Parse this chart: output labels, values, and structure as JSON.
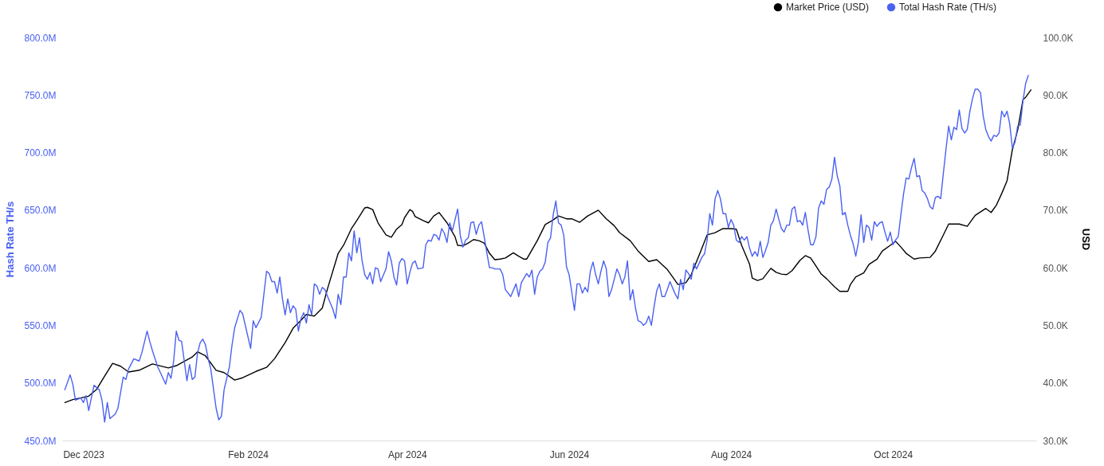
{
  "chart_data": {
    "type": "line",
    "ylabel": "Hash Rate TH/s",
    "y2label": "USD",
    "xlim": [
      "2023-11-23",
      "2024-11-24"
    ],
    "xticks": [
      {
        "value": "2023-12-01",
        "label": "Dec 2023"
      },
      {
        "value": "2024-02-01",
        "label": "Feb 2024"
      },
      {
        "value": "2024-04-01",
        "label": "Apr 2024"
      },
      {
        "value": "2024-06-01",
        "label": "Jun 2024"
      },
      {
        "value": "2024-08-01",
        "label": "Aug 2024"
      },
      {
        "value": "2024-10-01",
        "label": "Oct 2024"
      }
    ],
    "ylim": [
      450,
      800
    ],
    "yticks": [
      {
        "value": 450,
        "label": "450.0M"
      },
      {
        "value": 500,
        "label": "500.0M"
      },
      {
        "value": 550,
        "label": "550.0M"
      },
      {
        "value": 600,
        "label": "600.0M"
      },
      {
        "value": 650,
        "label": "650.0M"
      },
      {
        "value": 700,
        "label": "700.0M"
      },
      {
        "value": 750,
        "label": "750.0M"
      },
      {
        "value": 800,
        "label": "800.0M"
      }
    ],
    "y2lim": [
      30,
      100
    ],
    "y2ticks": [
      {
        "value": 30,
        "label": "30.0K"
      },
      {
        "value": 40,
        "label": "40.0K"
      },
      {
        "value": 50,
        "label": "50.0K"
      },
      {
        "value": 60,
        "label": "60.0K"
      },
      {
        "value": 70,
        "label": "70.0K"
      },
      {
        "value": 80,
        "label": "80.0K"
      },
      {
        "value": 90,
        "label": "90.0K"
      },
      {
        "value": 100,
        "label": "100.0K"
      }
    ],
    "legend": "top right",
    "series": [
      {
        "name": "Market Price (USD)",
        "color": "#000000",
        "axis": "y2",
        "x": [
          "2023-11-24",
          "2023-11-27",
          "2023-12-03",
          "2023-12-06",
          "2023-12-09",
          "2023-12-12",
          "2023-12-15",
          "2023-12-18",
          "2023-12-22",
          "2023-12-27",
          "2024-01-02",
          "2024-01-05",
          "2024-01-11",
          "2024-01-13",
          "2024-01-16",
          "2024-01-20",
          "2024-01-23",
          "2024-01-27",
          "2024-01-30",
          "2024-02-04",
          "2024-02-08",
          "2024-02-11",
          "2024-02-15",
          "2024-02-18",
          "2024-02-21",
          "2024-02-23",
          "2024-02-26",
          "2024-02-29",
          "2024-03-02",
          "2024-03-06",
          "2024-03-08",
          "2024-03-11",
          "2024-03-13",
          "2024-03-16",
          "2024-03-17",
          "2024-03-19",
          "2024-03-21",
          "2024-03-24",
          "2024-03-26",
          "2024-03-28",
          "2024-03-30",
          "2024-03-31",
          "2024-04-02",
          "2024-04-03",
          "2024-04-04",
          "2024-04-07",
          "2024-04-09",
          "2024-04-11",
          "2024-04-13",
          "2024-04-14",
          "2024-04-16",
          "2024-04-19",
          "2024-04-20",
          "2024-04-22",
          "2024-04-24",
          "2024-04-26",
          "2024-04-28",
          "2024-04-30",
          "2024-05-02",
          "2024-05-04",
          "2024-05-06",
          "2024-05-08",
          "2024-05-11",
          "2024-05-13",
          "2024-05-15",
          "2024-05-16",
          "2024-05-20",
          "2024-05-23",
          "2024-05-26",
          "2024-05-28",
          "2024-05-31",
          "2024-06-02",
          "2024-06-05",
          "2024-06-08",
          "2024-06-12",
          "2024-06-15",
          "2024-06-18",
          "2024-06-20",
          "2024-06-24",
          "2024-06-27",
          "2024-07-01",
          "2024-07-04",
          "2024-07-08",
          "2024-07-10",
          "2024-07-12",
          "2024-07-15",
          "2024-07-17",
          "2024-07-20",
          "2024-07-23",
          "2024-07-26",
          "2024-07-29",
          "2024-08-01",
          "2024-08-03",
          "2024-08-05",
          "2024-08-08",
          "2024-08-09",
          "2024-08-11",
          "2024-08-13",
          "2024-08-16",
          "2024-08-18",
          "2024-08-20",
          "2024-08-22",
          "2024-08-24",
          "2024-08-27",
          "2024-08-29",
          "2024-08-31",
          "2024-09-02",
          "2024-09-04",
          "2024-09-06",
          "2024-09-09",
          "2024-09-11",
          "2024-09-14",
          "2024-09-15",
          "2024-09-17",
          "2024-09-20",
          "2024-09-22",
          "2024-09-25",
          "2024-09-27",
          "2024-09-30",
          "2024-10-02",
          "2024-10-04",
          "2024-10-06",
          "2024-10-09",
          "2024-10-11",
          "2024-10-15",
          "2024-10-17",
          "2024-10-20",
          "2024-10-22",
          "2024-10-26",
          "2024-10-29",
          "2024-11-01",
          "2024-11-05",
          "2024-11-07",
          "2024-11-09",
          "2024-11-11",
          "2024-11-13",
          "2024-11-15",
          "2024-11-17",
          "2024-11-19",
          "2024-11-20",
          "2024-11-22"
        ],
        "values": [
          36.6,
          37.1,
          37.7,
          38.9,
          41.2,
          43.4,
          42.9,
          41.9,
          42.2,
          43.3,
          42.6,
          43.0,
          44.5,
          45.4,
          44.7,
          42.2,
          41.8,
          40.5,
          40.9,
          42.0,
          42.7,
          44.2,
          47.0,
          49.5,
          50.9,
          51.9,
          51.6,
          53.0,
          56.4,
          62.5,
          63.9,
          66.8,
          68.2,
          70.4,
          70.5,
          70.1,
          67.8,
          65.7,
          65.3,
          66.7,
          67.5,
          68.7,
          70.1,
          69.8,
          68.9,
          68.2,
          67.8,
          69.0,
          69.6,
          69.0,
          67.8,
          65.4,
          63.9,
          63.8,
          64.3,
          64.9,
          64.7,
          64.3,
          62.5,
          61.4,
          61.5,
          61.7,
          62.6,
          62.0,
          61.5,
          61.5,
          64.7,
          67.5,
          68.3,
          69.0,
          68.5,
          68.5,
          67.9,
          69.0,
          70.0,
          68.5,
          67.3,
          66.1,
          64.7,
          62.9,
          61.1,
          61.4,
          59.7,
          58.4,
          57.1,
          57.4,
          58.8,
          62.2,
          65.7,
          66.1,
          66.8,
          66.8,
          66.7,
          63.9,
          60.6,
          58.2,
          57.8,
          58.1,
          59.9,
          59.2,
          58.9,
          58.8,
          59.5,
          61.3,
          62.1,
          61.7,
          60.3,
          58.9,
          58.1,
          56.7,
          55.9,
          55.9,
          57.1,
          58.4,
          59.1,
          60.6,
          61.5,
          62.9,
          63.9,
          64.6,
          63.6,
          62.5,
          61.5,
          61.7,
          61.8,
          62.9,
          65.7,
          67.6,
          67.6,
          67.2,
          69.1,
          70.3,
          69.6,
          70.9,
          72.9,
          75.1,
          80.5,
          83.9,
          89.2,
          89.6,
          90.9
        ]
      },
      {
        "name": "Total Hash Rate (TH/s)",
        "color": "#4a61f2",
        "axis": "y",
        "x": [
          "2023-11-24",
          "2023-11-26",
          "2023-11-27",
          "2023-11-28",
          "2023-11-30",
          "2023-12-01",
          "2023-12-02",
          "2023-12-03",
          "2023-12-05",
          "2023-12-07",
          "2023-12-08",
          "2023-12-09",
          "2023-12-10",
          "2023-12-11",
          "2023-12-13",
          "2023-12-14",
          "2023-12-16",
          "2023-12-17",
          "2023-12-18",
          "2023-12-20",
          "2023-12-22",
          "2023-12-23",
          "2023-12-25",
          "2023-12-26",
          "2023-12-27",
          "2023-12-29",
          "2023-12-31",
          "2024-01-01",
          "2024-01-02",
          "2024-01-03",
          "2024-01-04",
          "2024-01-05",
          "2024-01-06",
          "2024-01-07",
          "2024-01-08",
          "2024-01-09",
          "2024-01-10",
          "2024-01-11",
          "2024-01-12",
          "2024-01-13",
          "2024-01-14",
          "2024-01-15",
          "2024-01-16",
          "2024-01-17",
          "2024-01-18",
          "2024-01-20",
          "2024-01-21",
          "2024-01-22",
          "2024-01-23",
          "2024-01-25",
          "2024-01-26",
          "2024-01-27",
          "2024-01-29",
          "2024-01-30",
          "2024-02-02",
          "2024-02-03",
          "2024-02-04",
          "2024-02-06",
          "2024-02-08",
          "2024-02-09",
          "2024-02-10",
          "2024-02-11",
          "2024-02-12",
          "2024-02-13",
          "2024-02-14",
          "2024-02-15",
          "2024-02-16",
          "2024-02-17",
          "2024-02-18",
          "2024-02-19",
          "2024-02-20",
          "2024-02-21",
          "2024-02-22",
          "2024-02-23",
          "2024-02-24",
          "2024-02-25",
          "2024-02-26",
          "2024-02-27",
          "2024-02-28",
          "2024-02-29",
          "2024-03-01",
          "2024-03-02",
          "2024-03-04",
          "2024-03-05",
          "2024-03-06",
          "2024-03-07",
          "2024-03-08",
          "2024-03-09",
          "2024-03-10",
          "2024-03-11",
          "2024-03-12",
          "2024-03-13",
          "2024-03-14",
          "2024-03-15",
          "2024-03-16",
          "2024-03-17",
          "2024-03-18",
          "2024-03-19",
          "2024-03-20",
          "2024-03-21",
          "2024-03-22",
          "2024-03-24",
          "2024-03-25",
          "2024-03-26",
          "2024-03-27",
          "2024-03-28",
          "2024-03-29",
          "2024-03-30",
          "2024-03-31",
          "2024-04-01",
          "2024-04-02",
          "2024-04-03",
          "2024-04-04",
          "2024-04-05",
          "2024-04-07",
          "2024-04-08",
          "2024-04-09",
          "2024-04-10",
          "2024-04-11",
          "2024-04-12",
          "2024-04-13",
          "2024-04-14",
          "2024-04-15",
          "2024-04-16",
          "2024-04-17",
          "2024-04-18",
          "2024-04-20",
          "2024-04-21",
          "2024-04-22",
          "2024-04-23",
          "2024-04-24",
          "2024-04-25",
          "2024-04-26",
          "2024-04-27",
          "2024-04-28",
          "2024-04-29",
          "2024-04-30",
          "2024-05-01",
          "2024-05-02",
          "2024-05-03",
          "2024-05-04",
          "2024-05-06",
          "2024-05-07",
          "2024-05-08",
          "2024-05-10",
          "2024-05-12",
          "2024-05-13",
          "2024-05-14",
          "2024-05-16",
          "2024-05-17",
          "2024-05-18",
          "2024-05-19",
          "2024-05-20",
          "2024-05-21",
          "2024-05-22",
          "2024-05-23",
          "2024-05-24",
          "2024-05-25",
          "2024-05-26",
          "2024-05-27",
          "2024-05-28",
          "2024-05-29",
          "2024-05-30",
          "2024-05-31",
          "2024-06-01",
          "2024-06-02",
          "2024-06-03",
          "2024-06-04",
          "2024-06-05",
          "2024-06-06",
          "2024-06-07",
          "2024-06-08",
          "2024-06-09",
          "2024-06-10",
          "2024-06-11",
          "2024-06-12",
          "2024-06-13",
          "2024-06-14",
          "2024-06-15",
          "2024-06-16",
          "2024-06-17",
          "2024-06-19",
          "2024-06-20",
          "2024-06-21",
          "2024-06-22",
          "2024-06-23",
          "2024-06-24",
          "2024-06-25",
          "2024-06-26",
          "2024-06-27",
          "2024-06-28",
          "2024-06-29",
          "2024-06-30",
          "2024-07-01",
          "2024-07-02",
          "2024-07-03",
          "2024-07-04",
          "2024-07-05",
          "2024-07-06",
          "2024-07-07",
          "2024-07-08",
          "2024-07-09",
          "2024-07-11",
          "2024-07-12",
          "2024-07-13",
          "2024-07-14",
          "2024-07-15",
          "2024-07-16",
          "2024-07-17",
          "2024-07-18",
          "2024-07-19",
          "2024-07-21",
          "2024-07-22",
          "2024-07-23",
          "2024-07-24",
          "2024-07-25",
          "2024-07-26",
          "2024-07-27",
          "2024-07-28",
          "2024-07-29",
          "2024-07-30",
          "2024-07-31",
          "2024-08-01",
          "2024-08-02",
          "2024-08-03",
          "2024-08-04",
          "2024-08-05",
          "2024-08-06",
          "2024-08-07",
          "2024-08-08",
          "2024-08-09",
          "2024-08-10",
          "2024-08-11",
          "2024-08-12",
          "2024-08-13",
          "2024-08-14",
          "2024-08-15",
          "2024-08-16",
          "2024-08-17",
          "2024-08-18",
          "2024-08-19",
          "2024-08-20",
          "2024-08-21",
          "2024-08-22",
          "2024-08-23",
          "2024-08-24",
          "2024-08-25",
          "2024-08-26",
          "2024-08-27",
          "2024-08-28",
          "2024-08-29",
          "2024-08-30",
          "2024-08-31",
          "2024-09-01",
          "2024-09-02",
          "2024-09-03",
          "2024-09-04",
          "2024-09-05",
          "2024-09-06",
          "2024-09-07",
          "2024-09-08",
          "2024-09-09",
          "2024-09-10",
          "2024-09-11",
          "2024-09-12",
          "2024-09-13",
          "2024-09-14",
          "2024-09-15",
          "2024-09-16",
          "2024-09-17",
          "2024-09-18",
          "2024-09-19",
          "2024-09-20",
          "2024-09-21",
          "2024-09-22",
          "2024-09-23",
          "2024-09-24",
          "2024-09-25",
          "2024-09-26",
          "2024-09-27",
          "2024-09-28",
          "2024-09-29",
          "2024-09-30",
          "2024-10-01",
          "2024-10-02",
          "2024-10-03",
          "2024-10-04",
          "2024-10-05",
          "2024-10-06",
          "2024-10-07",
          "2024-10-08",
          "2024-10-09",
          "2024-10-10",
          "2024-10-11",
          "2024-10-12",
          "2024-10-13",
          "2024-10-14",
          "2024-10-15",
          "2024-10-16",
          "2024-10-17",
          "2024-10-18",
          "2024-10-19",
          "2024-10-20",
          "2024-10-21",
          "2024-10-22",
          "2024-10-23",
          "2024-10-24",
          "2024-10-25",
          "2024-10-26",
          "2024-10-27",
          "2024-10-28",
          "2024-10-29",
          "2024-10-30",
          "2024-10-31",
          "2024-11-01",
          "2024-11-02",
          "2024-11-03",
          "2024-11-04",
          "2024-11-05",
          "2024-11-06",
          "2024-11-07",
          "2024-11-08",
          "2024-11-09",
          "2024-11-10",
          "2024-11-11",
          "2024-11-12",
          "2024-11-13",
          "2024-11-14",
          "2024-11-15",
          "2024-11-16",
          "2024-11-17",
          "2024-11-18",
          "2024-11-19",
          "2024-11-20",
          "2024-11-21"
        ],
        "values": [
          494,
          507,
          499,
          485,
          487,
          483,
          489,
          476,
          498,
          494,
          485,
          466,
          483,
          469,
          473,
          478,
          505,
          503,
          512,
          521,
          519,
          526,
          545,
          536,
          528,
          514,
          504,
          499,
          509,
          504,
          519,
          545,
          537,
          536,
          519,
          502,
          516,
          503,
          505,
          526,
          535,
          538,
          533,
          521,
          512,
          478,
          468,
          471,
          494,
          514,
          533,
          548,
          563,
          560,
          530,
          554,
          548,
          557,
          597,
          595,
          588,
          588,
          578,
          592,
          573,
          559,
          573,
          561,
          567,
          564,
          545,
          556,
          561,
          552,
          568,
          559,
          586,
          584,
          577,
          583,
          581,
          575,
          564,
          556,
          577,
          568,
          592,
          592,
          613,
          606,
          632,
          613,
          626,
          606,
          594,
          590,
          596,
          586,
          600,
          599,
          588,
          599,
          614,
          606,
          592,
          585,
          604,
          608,
          606,
          586,
          596,
          604,
          606,
          599,
          600,
          620,
          624,
          623,
          629,
          628,
          624,
          634,
          630,
          622,
          639,
          632,
          651,
          628,
          618,
          624,
          626,
          639,
          640,
          629,
          637,
          640,
          627,
          613,
          600,
          600,
          599,
          599,
          594,
          581,
          575,
          586,
          575,
          587,
          595,
          592,
          598,
          577,
          592,
          597,
          599,
          605,
          622,
          626,
          646,
          658,
          639,
          637,
          628,
          601,
          594,
          579,
          563,
          586,
          586,
          578,
          583,
          579,
          597,
          605,
          594,
          586,
          597,
          606,
          599,
          575,
          581,
          599,
          594,
          586,
          592,
          606,
          572,
          581,
          565,
          554,
          553,
          550,
          552,
          558,
          550,
          566,
          580,
          586,
          575,
          575,
          581,
          588,
          577,
          573,
          590,
          581,
          598,
          595,
          590,
          604,
          599,
          609,
          612,
          624,
          647,
          637,
          660,
          667,
          660,
          647,
          647,
          635,
          642,
          637,
          624,
          622,
          627,
          624,
          627,
          617,
          610,
          614,
          610,
          623,
          609,
          615,
          622,
          637,
          641,
          651,
          642,
          634,
          631,
          637,
          637,
          651,
          653,
          640,
          641,
          637,
          648,
          633,
          620,
          620,
          627,
          652,
          658,
          655,
          668,
          670,
          677,
          696,
          680,
          671,
          646,
          648,
          637,
          628,
          621,
          610,
          622,
          646,
          622,
          637,
          635,
          624,
          640,
          636,
          639,
          640,
          631,
          623,
          631,
          620,
          624,
          627,
          646,
          664,
          678,
          677,
          687,
          695,
          679,
          680,
          667,
          665,
          660,
          653,
          651,
          661,
          662,
          660,
          682,
          703,
          723,
          711,
          722,
          720,
          737,
          721,
          717,
          720,
          736,
          747,
          755,
          755,
          752,
          732,
          720,
          714,
          710,
          715,
          714,
          717,
          736,
          731,
          736,
          725,
          704,
          709,
          723,
          724,
          745,
          760,
          767
        ]
      }
    ]
  }
}
